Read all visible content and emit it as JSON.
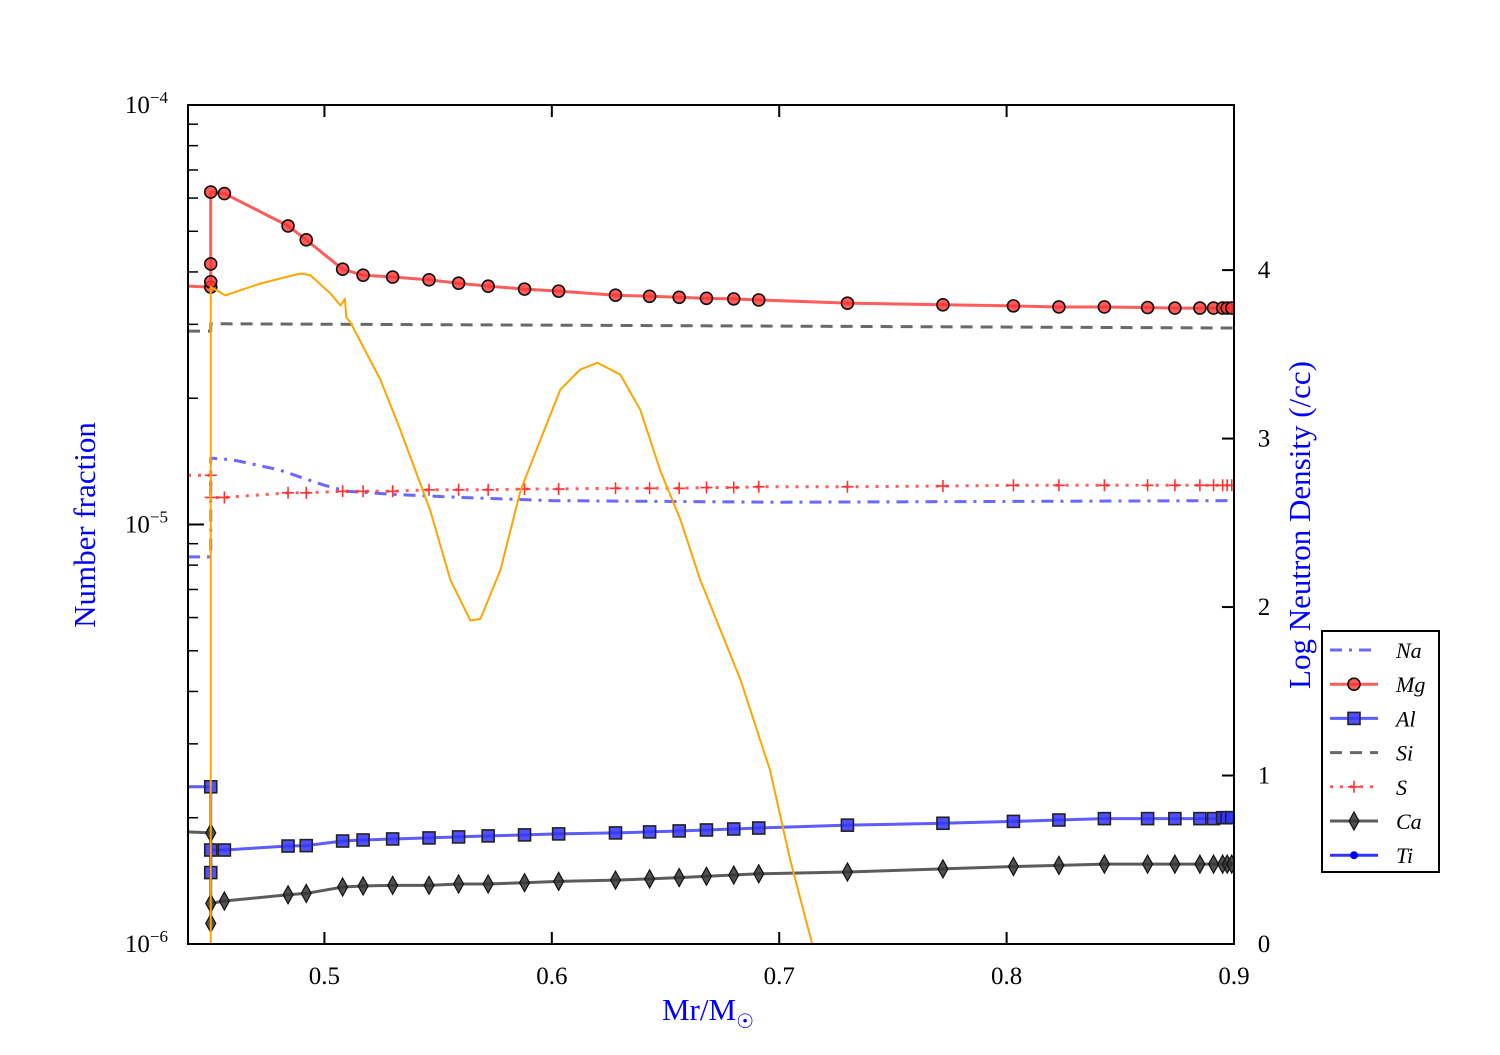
{
  "chart_data": {
    "type": "line",
    "xlabel": "Mr/M",
    "xlabel_symbol": "☉",
    "ylabel": "Number fraction",
    "ylabel_right": "Log Neutron Density (/cc)",
    "axis_label_color": "#0000ff",
    "xlim": [
      0.44,
      0.9
    ],
    "ylim": [
      1e-06,
      0.0001
    ],
    "yscale": "log",
    "ylim_right": [
      0,
      4.98
    ],
    "x_ticks": [
      "0.5",
      "0.6",
      "0.7",
      "0.8",
      "0.9"
    ],
    "y_ticks": [
      {
        "base": "10",
        "exp": "−4"
      },
      {
        "base": "10",
        "exp": "−5"
      },
      {
        "base": "10",
        "exp": "−6"
      }
    ],
    "y_right_ticks": [
      "0",
      "1",
      "2",
      "3",
      "4"
    ],
    "grid": false,
    "legend_position": "right-outside-bottom",
    "series": [
      {
        "name": "Na",
        "color": "#4444ff",
        "style": "dashdot",
        "marker": "none",
        "points": [
          [
            0.44,
            8.37e-06
          ],
          [
            0.45,
            8.37e-06
          ],
          [
            0.45,
            1.44e-05
          ],
          [
            0.46,
            1.425e-05
          ],
          [
            0.48,
            1.35e-05
          ],
          [
            0.5,
            1.24e-05
          ],
          [
            0.51,
            1.2e-05
          ],
          [
            0.53,
            1.18e-05
          ],
          [
            0.56,
            1.16e-05
          ],
          [
            0.6,
            1.14e-05
          ],
          [
            0.7,
            1.13e-05
          ],
          [
            0.8,
            1.135e-05
          ],
          [
            0.9,
            1.14e-05
          ]
        ]
      },
      {
        "name": "Mg",
        "color": "#ff3333",
        "style": "solid",
        "marker": "circle",
        "points": [
          [
            0.44,
            3.7e-05
          ],
          [
            0.45,
            3.68e-05
          ],
          [
            0.45,
            3.79e-05
          ],
          [
            0.45,
            4.18e-05
          ],
          [
            0.45,
            6.2e-05
          ],
          [
            0.456,
            6.15e-05
          ],
          [
            0.484,
            5.15e-05
          ],
          [
            0.492,
            4.77e-05
          ],
          [
            0.508,
            4.06e-05
          ],
          [
            0.517,
            3.93e-05
          ],
          [
            0.53,
            3.89e-05
          ],
          [
            0.546,
            3.83e-05
          ],
          [
            0.559,
            3.76e-05
          ],
          [
            0.572,
            3.7e-05
          ],
          [
            0.588,
            3.64e-05
          ],
          [
            0.603,
            3.6e-05
          ],
          [
            0.628,
            3.52e-05
          ],
          [
            0.643,
            3.5e-05
          ],
          [
            0.656,
            3.48e-05
          ],
          [
            0.668,
            3.46e-05
          ],
          [
            0.68,
            3.45e-05
          ],
          [
            0.691,
            3.43e-05
          ],
          [
            0.73,
            3.37e-05
          ],
          [
            0.772,
            3.34e-05
          ],
          [
            0.803,
            3.32e-05
          ],
          [
            0.823,
            3.3e-05
          ],
          [
            0.843,
            3.3e-05
          ],
          [
            0.862,
            3.29e-05
          ],
          [
            0.874,
            3.28e-05
          ],
          [
            0.885,
            3.28e-05
          ],
          [
            0.891,
            3.28e-05
          ],
          [
            0.895,
            3.28e-05
          ],
          [
            0.897,
            3.28e-05
          ],
          [
            0.899,
            3.28e-05
          ]
        ]
      },
      {
        "name": "Al",
        "color": "#3333ff",
        "style": "solid",
        "marker": "square",
        "points": [
          [
            0.44,
            2.37e-06
          ],
          [
            0.45,
            2.37e-06
          ],
          [
            0.45,
            1.48e-06
          ],
          [
            0.45,
            1.675e-06
          ],
          [
            0.456,
            1.675e-06
          ],
          [
            0.484,
            1.712e-06
          ],
          [
            0.492,
            1.716e-06
          ],
          [
            0.508,
            1.76e-06
          ],
          [
            0.517,
            1.77e-06
          ],
          [
            0.53,
            1.78e-06
          ],
          [
            0.546,
            1.79e-06
          ],
          [
            0.559,
            1.8e-06
          ],
          [
            0.572,
            1.81e-06
          ],
          [
            0.588,
            1.82e-06
          ],
          [
            0.603,
            1.83e-06
          ],
          [
            0.628,
            1.84e-06
          ],
          [
            0.643,
            1.85e-06
          ],
          [
            0.656,
            1.86e-06
          ],
          [
            0.668,
            1.87e-06
          ],
          [
            0.68,
            1.88e-06
          ],
          [
            0.691,
            1.89e-06
          ],
          [
            0.73,
            1.92e-06
          ],
          [
            0.772,
            1.94e-06
          ],
          [
            0.803,
            1.96e-06
          ],
          [
            0.823,
            1.975e-06
          ],
          [
            0.843,
            1.99e-06
          ],
          [
            0.862,
            1.99e-06
          ],
          [
            0.874,
            1.99e-06
          ],
          [
            0.885,
            1.99e-06
          ],
          [
            0.891,
            1.99e-06
          ],
          [
            0.895,
            2e-06
          ],
          [
            0.897,
            2e-06
          ],
          [
            0.899,
            2e-06
          ]
        ]
      },
      {
        "name": "Si",
        "color": "#444444",
        "style": "dashed",
        "marker": "none",
        "points": [
          [
            0.44,
            2.89e-05
          ],
          [
            0.45,
            2.89e-05
          ],
          [
            0.45,
            3.01e-05
          ],
          [
            0.9,
            2.94e-05
          ]
        ]
      },
      {
        "name": "S",
        "color": "#ff3333",
        "style": "dotted",
        "marker": "plus",
        "points": [
          [
            0.44,
            1.31e-05
          ],
          [
            0.45,
            1.31e-05
          ],
          [
            0.45,
            1.16e-05
          ],
          [
            0.456,
            1.16e-05
          ],
          [
            0.484,
            1.19e-05
          ],
          [
            0.492,
            1.19e-05
          ],
          [
            0.508,
            1.2e-05
          ],
          [
            0.517,
            1.2e-05
          ],
          [
            0.53,
            1.2e-05
          ],
          [
            0.546,
            1.21e-05
          ],
          [
            0.559,
            1.21e-05
          ],
          [
            0.572,
            1.21e-05
          ],
          [
            0.588,
            1.215e-05
          ],
          [
            0.603,
            1.215e-05
          ],
          [
            0.628,
            1.22e-05
          ],
          [
            0.643,
            1.22e-05
          ],
          [
            0.656,
            1.22e-05
          ],
          [
            0.668,
            1.225e-05
          ],
          [
            0.68,
            1.225e-05
          ],
          [
            0.691,
            1.23e-05
          ],
          [
            0.73,
            1.23e-05
          ],
          [
            0.772,
            1.235e-05
          ],
          [
            0.803,
            1.24e-05
          ],
          [
            0.823,
            1.24e-05
          ],
          [
            0.843,
            1.24e-05
          ],
          [
            0.862,
            1.24e-05
          ],
          [
            0.874,
            1.24e-05
          ],
          [
            0.885,
            1.24e-05
          ],
          [
            0.891,
            1.24e-05
          ],
          [
            0.895,
            1.24e-05
          ],
          [
            0.897,
            1.24e-05
          ],
          [
            0.899,
            1.24e-05
          ]
        ]
      },
      {
        "name": "Ca",
        "color": "#333333",
        "style": "solid",
        "marker": "diamond",
        "points": [
          [
            0.44,
            1.85e-06
          ],
          [
            0.45,
            1.84e-06
          ],
          [
            0.45,
            1.12e-06
          ],
          [
            0.45,
            1.25e-06
          ],
          [
            0.456,
            1.266e-06
          ],
          [
            0.484,
            1.31e-06
          ],
          [
            0.492,
            1.32e-06
          ],
          [
            0.508,
            1.367e-06
          ],
          [
            0.517,
            1.375e-06
          ],
          [
            0.53,
            1.38e-06
          ],
          [
            0.546,
            1.38e-06
          ],
          [
            0.559,
            1.39e-06
          ],
          [
            0.572,
            1.39e-06
          ],
          [
            0.588,
            1.4e-06
          ],
          [
            0.603,
            1.41e-06
          ],
          [
            0.628,
            1.42e-06
          ],
          [
            0.643,
            1.43e-06
          ],
          [
            0.656,
            1.44e-06
          ],
          [
            0.668,
            1.45e-06
          ],
          [
            0.68,
            1.46e-06
          ],
          [
            0.691,
            1.47e-06
          ],
          [
            0.73,
            1.485e-06
          ],
          [
            0.772,
            1.51e-06
          ],
          [
            0.803,
            1.53e-06
          ],
          [
            0.823,
            1.54e-06
          ],
          [
            0.843,
            1.55e-06
          ],
          [
            0.862,
            1.55e-06
          ],
          [
            0.874,
            1.55e-06
          ],
          [
            0.885,
            1.55e-06
          ],
          [
            0.891,
            1.55e-06
          ],
          [
            0.895,
            1.55e-06
          ],
          [
            0.897,
            1.55e-06
          ],
          [
            0.899,
            1.55e-06
          ]
        ]
      },
      {
        "name": "Ti",
        "color": "#0000ff",
        "style": "solid",
        "marker": "dot",
        "points": []
      },
      {
        "color": "#ffa500",
        "style": "solid",
        "marker": "none",
        "axis": "right",
        "points": [
          [
            0.45,
            0
          ],
          [
            0.45,
            3.9
          ],
          [
            0.4565,
            3.85
          ],
          [
            0.463,
            3.88
          ],
          [
            0.4718,
            3.92
          ],
          [
            0.4806,
            3.95
          ],
          [
            0.4894,
            3.98
          ],
          [
            0.4938,
            3.97
          ],
          [
            0.5027,
            3.86
          ],
          [
            0.5071,
            3.79
          ],
          [
            0.509,
            3.83
          ],
          [
            0.5096,
            3.72
          ],
          [
            0.5114,
            3.69
          ],
          [
            0.5246,
            3.35
          ],
          [
            0.5334,
            3.05
          ],
          [
            0.5466,
            2.57
          ],
          [
            0.5554,
            2.16
          ],
          [
            0.5642,
            1.92
          ],
          [
            0.5686,
            1.93
          ],
          [
            0.5774,
            2.22
          ],
          [
            0.5862,
            2.69
          ],
          [
            0.5949,
            2.99
          ],
          [
            0.6037,
            3.29
          ],
          [
            0.6125,
            3.41
          ],
          [
            0.62,
            3.45
          ],
          [
            0.6301,
            3.38
          ],
          [
            0.6389,
            3.17
          ],
          [
            0.6477,
            2.81
          ],
          [
            0.6565,
            2.52
          ],
          [
            0.6653,
            2.16
          ],
          [
            0.6829,
            1.57
          ],
          [
            0.696,
            1.03
          ],
          [
            0.7048,
            0.5
          ],
          [
            0.7145,
            0
          ]
        ]
      }
    ]
  }
}
